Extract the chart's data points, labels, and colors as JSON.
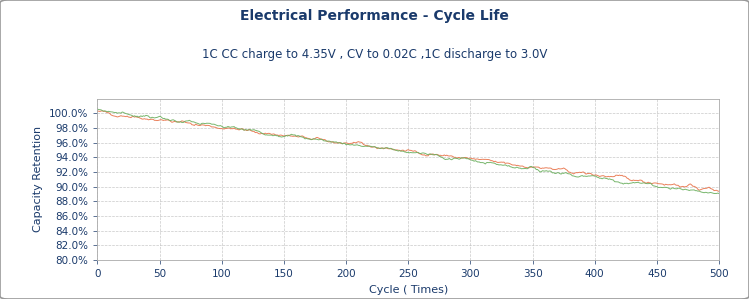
{
  "title": "Electrical Performance - Cycle Life",
  "subtitle": "1C CC charge to 4.35V , CV to 0.02C ,1C discharge to 3.0V",
  "xlabel": "Cycle ( Times)",
  "ylabel": "Capacity Retention",
  "xlim": [
    0,
    500
  ],
  "ylim": [
    0.8,
    1.02
  ],
  "yticks": [
    0.8,
    0.82,
    0.84,
    0.86,
    0.88,
    0.9,
    0.92,
    0.94,
    0.96,
    0.98,
    1.0
  ],
  "xticks": [
    0,
    50,
    100,
    150,
    200,
    250,
    300,
    350,
    400,
    450,
    500
  ],
  "line1_color": "#E8734A",
  "line2_color": "#6AAF5E",
  "bg_color": "#FFFFFF",
  "outer_bg": "#FFFFFF",
  "title_color": "#1A3A6B",
  "label_color": "#1A3A6B",
  "tick_color": "#1A3A6B",
  "grid_color": "#BBBBBB",
  "title_fontsize": 10,
  "subtitle_fontsize": 8.5,
  "axis_label_fontsize": 8,
  "tick_fontsize": 7.5
}
